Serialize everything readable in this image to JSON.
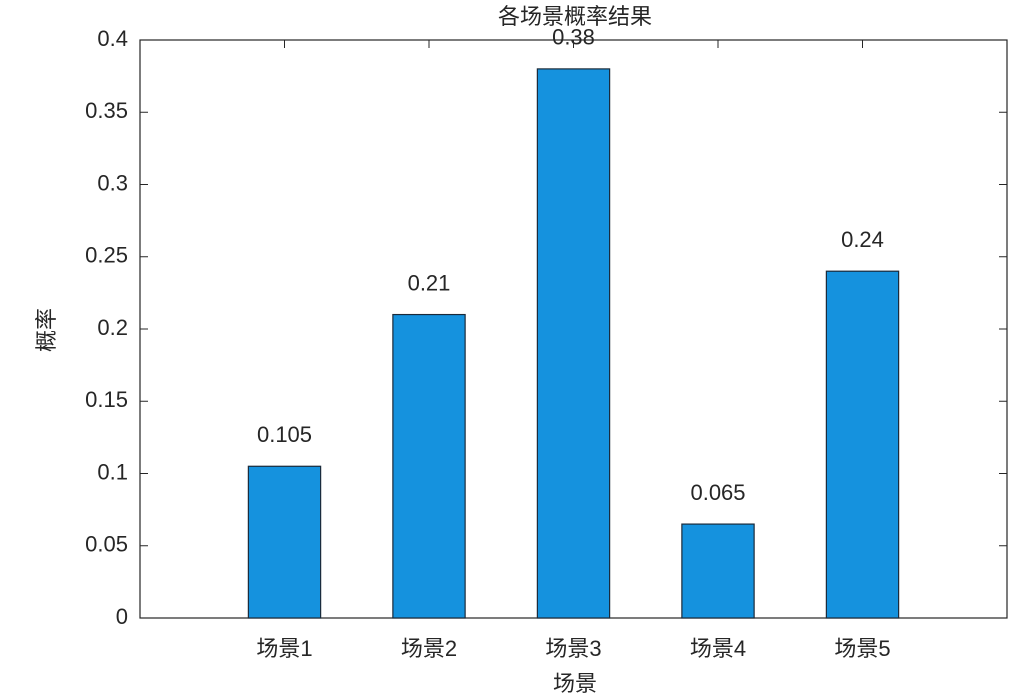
{
  "chart_data": {
    "type": "bar",
    "title": "各场景概率结果",
    "x_label": "场景",
    "y_label": "概率",
    "categories": [
      "场景1",
      "场景2",
      "场景3",
      "场景4",
      "场景5"
    ],
    "values": [
      0.105,
      0.21,
      0.38,
      0.065,
      0.24
    ],
    "color": "#1592de",
    "ylim": [
      0,
      0.4
    ],
    "yticks": [
      0,
      0.05,
      0.1,
      0.15,
      0.2,
      0.25,
      0.3,
      0.35,
      0.4
    ],
    "grid": false
  }
}
